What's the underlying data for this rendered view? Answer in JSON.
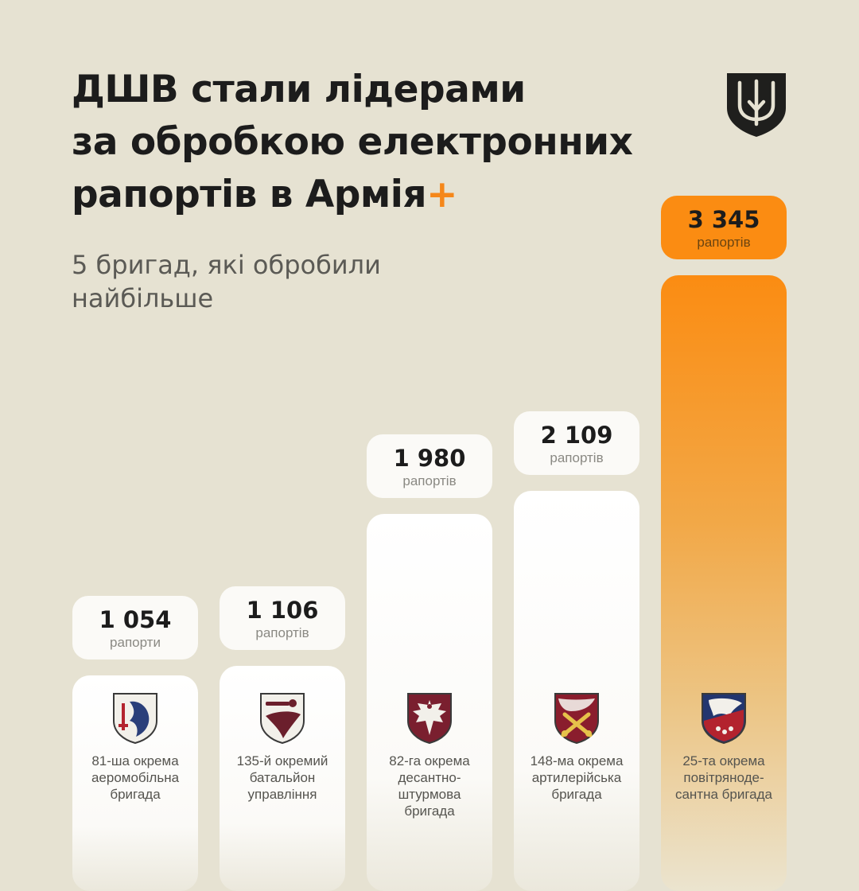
{
  "header": {
    "title_line1": "ДШВ стали лідерами",
    "title_line2": "за обробкою електронних",
    "title_line3_text": "рапортів в Армія",
    "title_plus": "+",
    "subtitle_line1": "5 бригад, які обробили",
    "subtitle_line2": "найбільше"
  },
  "emblem": {
    "icon": "trident-shield-icon",
    "color": "#1f1f1d"
  },
  "colors": {
    "background": "#e6e2d2",
    "accent": "#f5871a",
    "bar": "#ffffff",
    "text": "#1c1c1c"
  },
  "chart_data": {
    "type": "bar",
    "title": "",
    "xlabel": "",
    "ylabel": "",
    "ylim": [
      0,
      3345
    ],
    "grid": false,
    "legend": "none",
    "categories": [
      "81-ша окрема аеромобільна бригада",
      "135-й окремий батальйон управління",
      "82-га окрема десантно-штурмова бригада",
      "148-ма окрема артилерійська бригада",
      "25-та окрема повітрянодесантна бригада"
    ],
    "values": [
      1054,
      1106,
      1980,
      2109,
      3345
    ],
    "highlight_index": 4,
    "bars": [
      {
        "value": 1054,
        "value_label": "1 054",
        "unit": "рапорти",
        "label_lines": [
          "81-ша окрема",
          "аеромобільна",
          "бригада"
        ],
        "badge_icon": "griffin-badge-icon",
        "badge_colors": [
          "#f2f0ea",
          "#2a3f7a",
          "#b3232e"
        ]
      },
      {
        "value": 1106,
        "value_label": "1 106",
        "unit": "рапортів",
        "label_lines": [
          "135-й окремий",
          "батальйон",
          "управління"
        ],
        "badge_icon": "wing-mace-badge-icon",
        "badge_colors": [
          "#f2f0ea",
          "#6b1f2c",
          "#6b1f2c"
        ]
      },
      {
        "value": 1980,
        "value_label": "1 980",
        "unit": "рапортів",
        "label_lines": [
          "82-га окрема",
          "десантно-",
          "штурмова",
          "бригада"
        ],
        "badge_icon": "eagle-badge-icon",
        "badge_colors": [
          "#7a1f2f",
          "#f2f0ea",
          "#7a1f2f"
        ]
      },
      {
        "value": 2109,
        "value_label": "2 109",
        "unit": "рапортів",
        "label_lines": [
          "148-ма окрема",
          "артилерійська",
          "бригада"
        ],
        "badge_icon": "crossed-cannons-badge-icon",
        "badge_colors": [
          "#8a1d2d",
          "#e6c24a",
          "#f2f0ea"
        ]
      },
      {
        "value": 3345,
        "value_label": "3 345",
        "unit": "рапортів",
        "label_lines": [
          "25-та окрема",
          "повітрянодe-",
          "сантна бригада"
        ],
        "badge_icon": "eagle-head-stars-badge-icon",
        "badge_colors": [
          "#23366f",
          "#f2f0ea",
          "#b3232e"
        ]
      }
    ]
  }
}
